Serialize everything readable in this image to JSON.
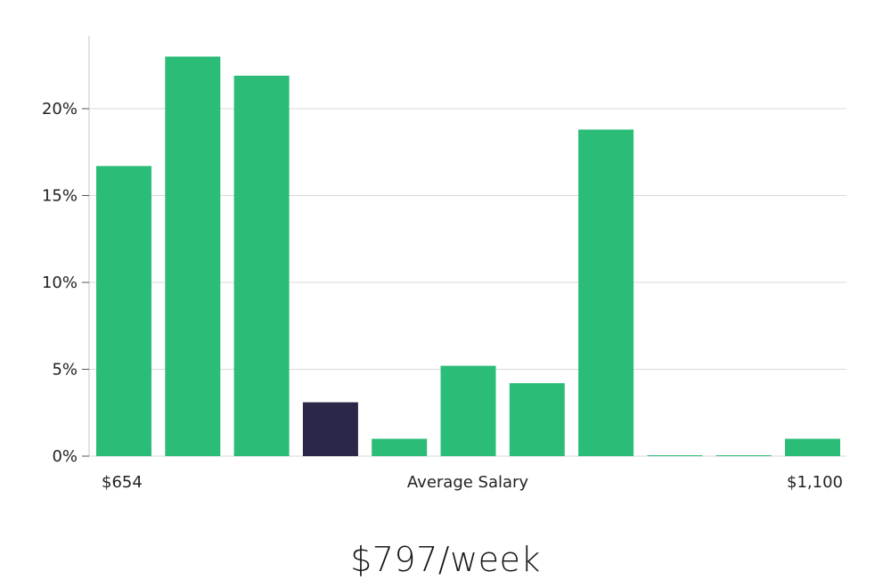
{
  "chart_data": {
    "type": "bar",
    "values": [
      16.7,
      23.0,
      21.9,
      3.1,
      1.0,
      5.2,
      4.2,
      18.8,
      0.05,
      0.05,
      1.0
    ],
    "highlight_index": 3,
    "ylim": [
      0,
      24
    ],
    "yticks": [
      0,
      5,
      10,
      15,
      20
    ],
    "ytick_labels": [
      "0%",
      "5%",
      "10%",
      "15%",
      "20%"
    ],
    "x_min_label": "$654",
    "xlabel": "Average Salary",
    "x_max_label": "$1,100",
    "grid": true,
    "colors": {
      "bar": "#2bbd77",
      "highlight": "#2a2749",
      "grid": "#d9d9d9",
      "axis": "#c8c8c8"
    }
  },
  "headline": "$797/week"
}
